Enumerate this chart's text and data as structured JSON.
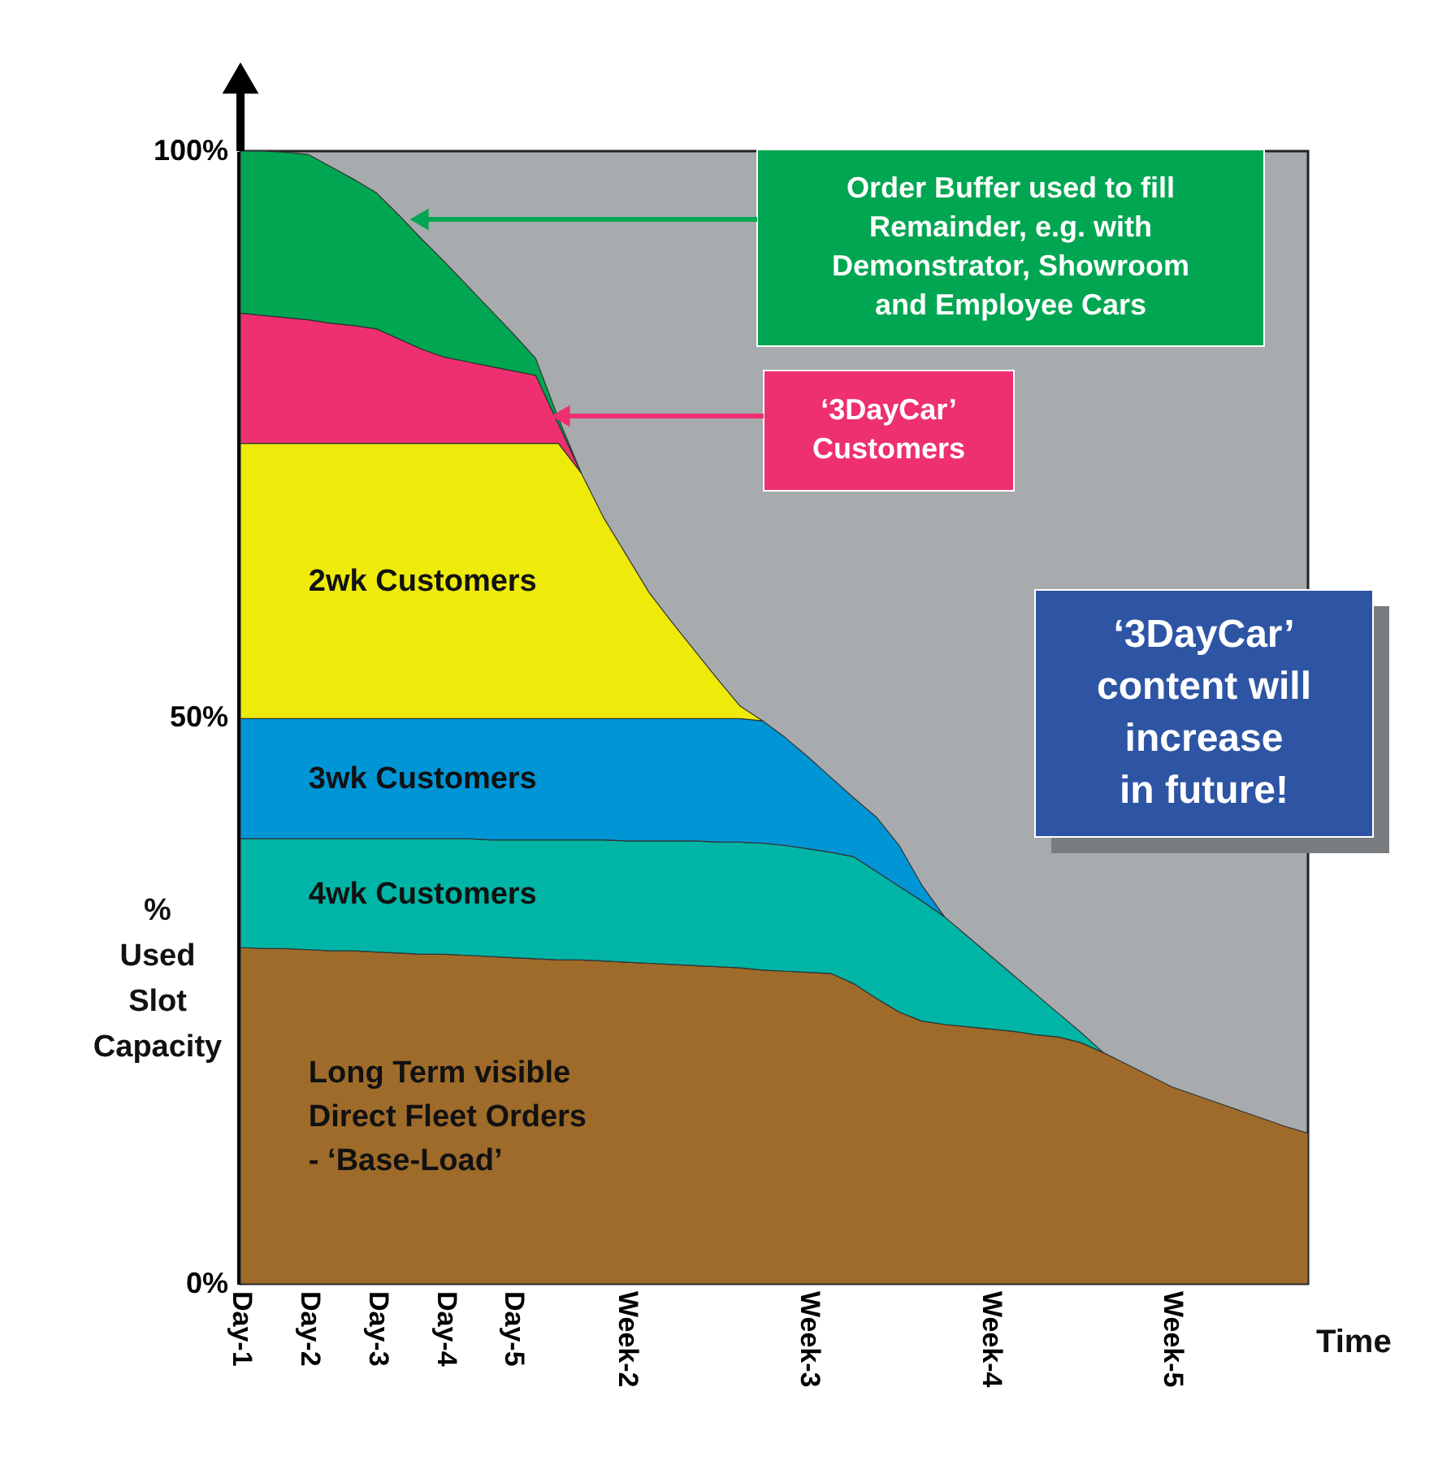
{
  "chart_data": {
    "type": "area",
    "stacked": true,
    "ylabel": "%\nUsed\nSlot\nCapacity",
    "xlabel": "Time",
    "categories": [
      "Day-1",
      null,
      null,
      "Day-2",
      null,
      null,
      "Day-3",
      null,
      null,
      "Day-4",
      null,
      null,
      "Day-5",
      null,
      null,
      null,
      null,
      "Week-2",
      null,
      null,
      null,
      null,
      null,
      null,
      null,
      "Week-3",
      null,
      null,
      null,
      null,
      null,
      null,
      null,
      "Week-4",
      null,
      null,
      null,
      null,
      null,
      null,
      null,
      "Week-5",
      null,
      null,
      null,
      null,
      null,
      null
    ],
    "ylim": [
      0,
      100
    ],
    "yticks": [
      {
        "value": 0,
        "label": "0%"
      },
      {
        "value": 50,
        "label": "50%"
      },
      {
        "value": 100,
        "label": "100%"
      }
    ],
    "series": [
      {
        "name": "Long Term visible\nDirect Fleet Orders\n- ‘Base-Load’",
        "color": "#9e6b2a",
        "values": [
          29.7,
          29.6,
          29.6,
          29.5,
          29.4,
          29.4,
          29.3,
          29.2,
          29.1,
          29.1,
          29.0,
          28.9,
          28.8,
          28.7,
          28.6,
          28.6,
          28.5,
          28.4,
          28.3,
          28.2,
          28.1,
          28.0,
          27.9,
          27.7,
          27.6,
          27.5,
          27.4,
          26.5,
          25.2,
          24.0,
          23.2,
          22.9,
          22.7,
          22.5,
          22.3,
          22.0,
          21.8,
          21.3,
          20.4,
          19.4,
          18.4,
          17.4,
          16.7,
          16.0,
          15.3,
          14.6,
          13.9,
          13.3
        ]
      },
      {
        "name": "4wk Customers",
        "color": "#00b5a5",
        "values": [
          9.6,
          9.7,
          9.7,
          9.8,
          9.9,
          9.9,
          10.0,
          10.1,
          10.2,
          10.2,
          10.3,
          10.3,
          10.4,
          10.5,
          10.6,
          10.6,
          10.7,
          10.7,
          10.8,
          10.9,
          11.0,
          11.0,
          11.1,
          11.2,
          11.1,
          10.9,
          10.7,
          11.2,
          11.2,
          11.1,
          10.6,
          9.5,
          8.0,
          6.5,
          5.0,
          3.6,
          2.1,
          0.9,
          0.0,
          null,
          null,
          null,
          null,
          null,
          null,
          null,
          null,
          null
        ]
      },
      {
        "name": "3wk Customers",
        "color": "#0095d5",
        "values": [
          10.6,
          10.6,
          10.6,
          10.6,
          10.6,
          10.6,
          10.6,
          10.6,
          10.6,
          10.6,
          10.6,
          10.7,
          10.7,
          10.7,
          10.7,
          10.7,
          10.7,
          10.8,
          10.8,
          10.8,
          10.8,
          10.9,
          10.9,
          10.8,
          9.5,
          8.1,
          6.6,
          5.2,
          4.8,
          3.6,
          1.4,
          0.0,
          null,
          null,
          null,
          null,
          null,
          null,
          null,
          null,
          null,
          null,
          null,
          null,
          null,
          null,
          null,
          null
        ]
      },
      {
        "name": "2wk Customers",
        "color": "#eeea0a",
        "values": [
          24.3,
          24.3,
          24.3,
          24.3,
          24.3,
          24.3,
          24.3,
          24.3,
          24.3,
          24.3,
          24.3,
          24.3,
          24.3,
          24.3,
          24.3,
          21.7,
          17.7,
          14.4,
          11.1,
          8.5,
          6.0,
          3.5,
          1.1,
          0.0,
          null,
          null,
          null,
          null,
          null,
          null,
          null,
          null,
          null,
          null,
          null,
          null,
          null,
          null,
          null,
          null,
          null,
          null,
          null,
          null,
          null,
          null,
          null,
          null
        ]
      },
      {
        "color": "#ee3070",
        "values": [
          11.5,
          11.3,
          11.1,
          10.9,
          10.6,
          10.4,
          10.1,
          9.2,
          8.3,
          7.6,
          7.2,
          6.8,
          6.4,
          6.0,
          1.7,
          0.0,
          null,
          null,
          null,
          null,
          null,
          null,
          null,
          null,
          null,
          null,
          null,
          null,
          null,
          null,
          null,
          null,
          null,
          null,
          null,
          null,
          null,
          null,
          null,
          null,
          null,
          null,
          null,
          null,
          null,
          null,
          null,
          null
        ]
      },
      {
        "color": "#00a651",
        "values": [
          14.3,
          14.5,
          14.6,
          14.6,
          13.8,
          12.9,
          12.0,
          10.9,
          9.7,
          8.4,
          6.7,
          5.0,
          3.3,
          1.5,
          0.5,
          0.0,
          null,
          null,
          null,
          null,
          null,
          null,
          null,
          null,
          null,
          null,
          null,
          null,
          null,
          null,
          null,
          null,
          null,
          null,
          null,
          null,
          null,
          null,
          null,
          null,
          null,
          null,
          null,
          null,
          null,
          null,
          null,
          null
        ]
      }
    ],
    "annotations": [
      "Order Buffer used to fill\nRemainder, e.g. with\nDemonstrator, Showroom\nand Employee Cars",
      "‘3DayCar’\nCustomers",
      "‘3DayCar’\ncontent will\nincrease\nin future!"
    ],
    "legend": false,
    "grid": false
  }
}
